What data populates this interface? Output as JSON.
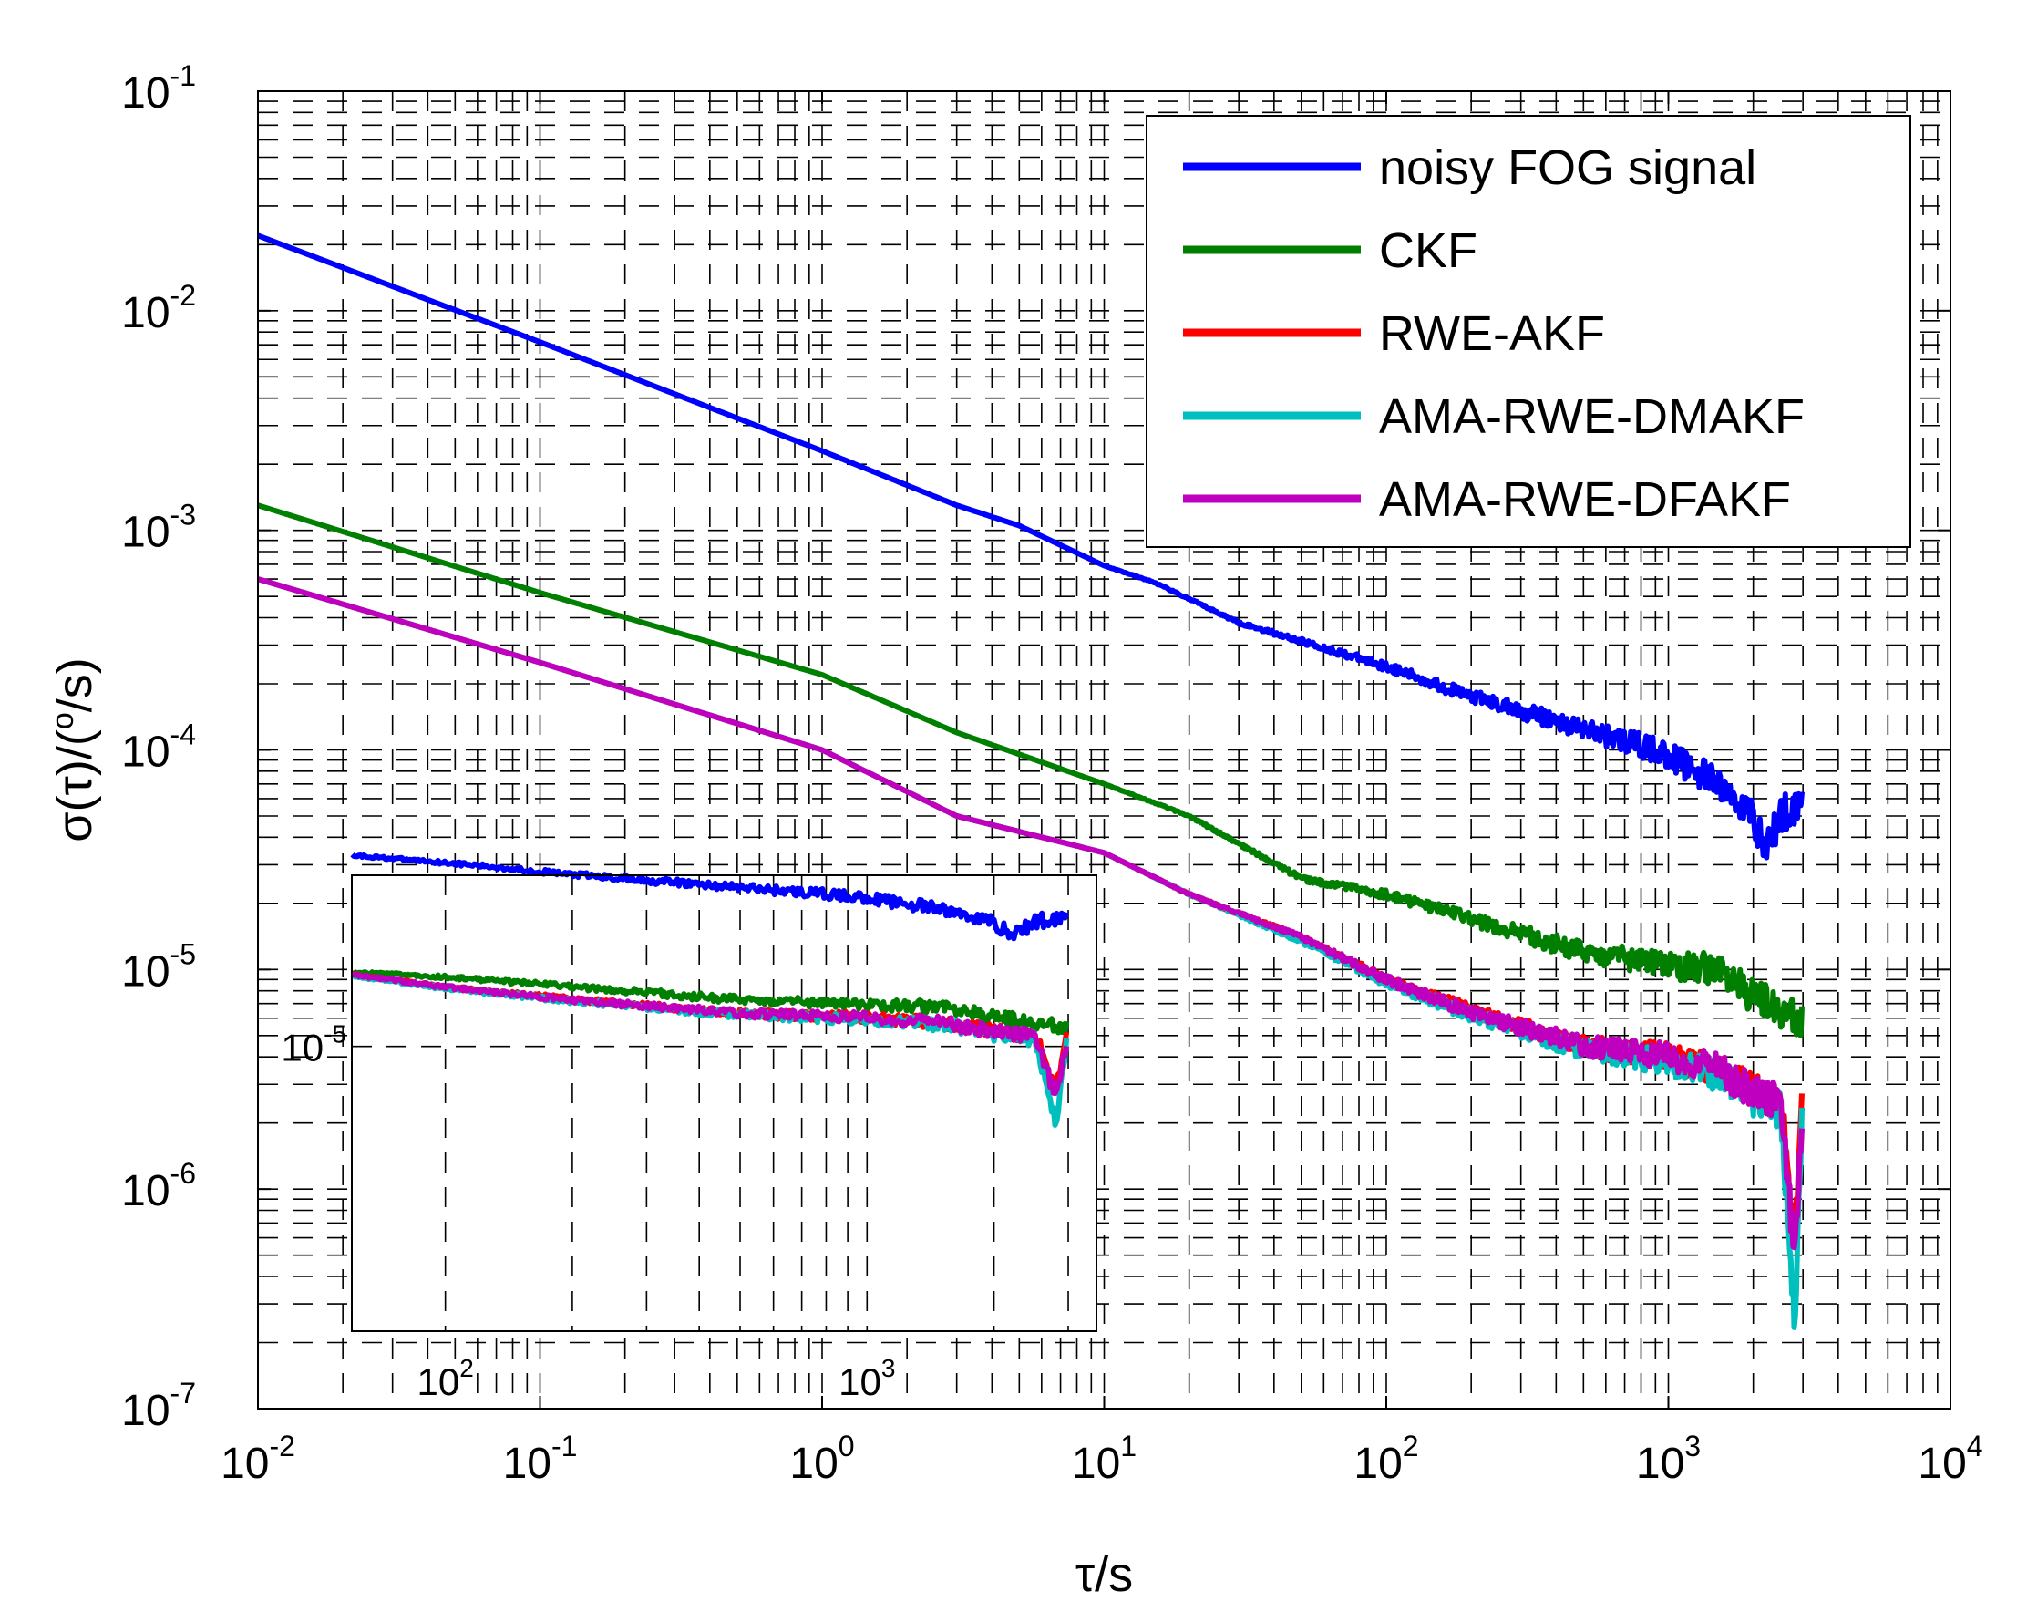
{
  "chart_data": {
    "type": "line",
    "scale": "log-log",
    "xlabel": "τ/s",
    "ylabel": "σ(τ)/(°/s)",
    "ylabel_parts": {
      "prefix": "σ(τ)/(",
      "sup": "o",
      "suffix": "/s)"
    },
    "xlim": [
      0.01,
      10000
    ],
    "ylim": [
      1e-07,
      0.1
    ],
    "grid": true,
    "legend_position": "top-right",
    "x_ticks": [
      {
        "value": 0.01,
        "base": "10",
        "exp": "-2"
      },
      {
        "value": 0.1,
        "base": "10",
        "exp": "-1"
      },
      {
        "value": 1,
        "base": "10",
        "exp": "0"
      },
      {
        "value": 10,
        "base": "10",
        "exp": "1"
      },
      {
        "value": 100,
        "base": "10",
        "exp": "2"
      },
      {
        "value": 1000,
        "base": "10",
        "exp": "3"
      },
      {
        "value": 10000,
        "base": "10",
        "exp": "4"
      }
    ],
    "y_ticks": [
      {
        "value": 1e-07,
        "base": "10",
        "exp": "-7"
      },
      {
        "value": 1e-06,
        "base": "10",
        "exp": "-6"
      },
      {
        "value": 1e-05,
        "base": "10",
        "exp": "-5"
      },
      {
        "value": 0.0001,
        "base": "10",
        "exp": "-4"
      },
      {
        "value": 0.001,
        "base": "10",
        "exp": "-3"
      },
      {
        "value": 0.01,
        "base": "10",
        "exp": "-2"
      },
      {
        "value": 0.1,
        "base": "10",
        "exp": "-1"
      }
    ],
    "series": [
      {
        "name": "noisy FOG signal",
        "color": "#0000ff",
        "x": [
          0.01,
          0.1,
          1,
          3,
          5,
          10,
          15,
          30,
          100,
          200,
          400,
          700,
          1000,
          1500,
          2000,
          2200,
          2500,
          3000
        ],
        "y": [
          0.022,
          0.0072,
          0.0023,
          0.0013,
          0.00105,
          0.00069,
          0.00058,
          0.00038,
          0.00024,
          0.000175,
          0.000135,
          0.00011,
          9.5e-05,
          7e-05,
          5e-05,
          3.5e-05,
          5e-05,
          6e-05
        ]
      },
      {
        "name": "CKF",
        "color": "#007f00",
        "x": [
          0.01,
          0.1,
          1,
          3,
          10,
          20,
          50,
          100,
          200,
          500,
          1000,
          1500,
          2000,
          2500,
          3000
        ],
        "y": [
          0.0013,
          0.00052,
          0.00022,
          0.00012,
          7e-05,
          5e-05,
          2.6e-05,
          2.2e-05,
          1.7e-05,
          1.2e-05,
          1.05e-05,
          1e-05,
          7.5e-06,
          6.5e-06,
          6e-06
        ]
      },
      {
        "name": "RWE-AKF",
        "color": "#ff0000",
        "x": [
          0.01,
          0.1,
          1,
          3,
          10,
          20,
          50,
          100,
          200,
          500,
          1000,
          1500,
          2000,
          2500,
          2800,
          3000
        ],
        "y": [
          0.0006,
          0.00025,
          0.0001,
          5e-05,
          3.4e-05,
          2.2e-05,
          1.4e-05,
          9e-06,
          6.5e-06,
          4.5e-06,
          4e-06,
          3.5e-06,
          2.8e-06,
          2.5e-06,
          6.5e-07,
          2.8e-06
        ]
      },
      {
        "name": "AMA-RWE-DMAKF",
        "color": "#00bfbf",
        "x": [
          0.01,
          0.1,
          1,
          3,
          10,
          20,
          50,
          100,
          200,
          500,
          1000,
          1500,
          2000,
          2500,
          2800,
          3000
        ],
        "y": [
          0.0006,
          0.00025,
          0.0001,
          5e-05,
          3.4e-05,
          2.2e-05,
          1.35e-05,
          8.7e-06,
          6.2e-06,
          4.3e-06,
          3.8e-06,
          3.3e-06,
          2.6e-06,
          2.3e-06,
          2.5e-07,
          2.6e-06
        ]
      },
      {
        "name": "AMA-RWE-DFAKF",
        "color": "#bf00bf",
        "x": [
          0.01,
          0.1,
          1,
          3,
          10,
          20,
          50,
          100,
          200,
          500,
          1000,
          1500,
          2000,
          2500,
          2800,
          3000
        ],
        "y": [
          0.0006,
          0.00025,
          0.0001,
          5e-05,
          3.4e-05,
          2.2e-05,
          1.4e-05,
          9e-06,
          6.4e-06,
          4.5e-06,
          4e-06,
          3.5e-06,
          2.8e-06,
          2.5e-06,
          5e-07,
          2.8e-06
        ]
      }
    ],
    "inset": {
      "xlim": [
        60,
        3500
      ],
      "x_ticks": [
        {
          "value": 100,
          "base": "10",
          "exp": "2"
        },
        {
          "value": 1000,
          "base": "10",
          "exp": "3"
        }
      ],
      "y_tick": {
        "base": "10",
        "exp": "-5"
      },
      "series_labels": [
        "noisy FOG signal",
        "CKF",
        "RWE-AKF",
        "AMA-RWE-DMAKF",
        "AMA-RWE-DFAKF"
      ]
    }
  }
}
